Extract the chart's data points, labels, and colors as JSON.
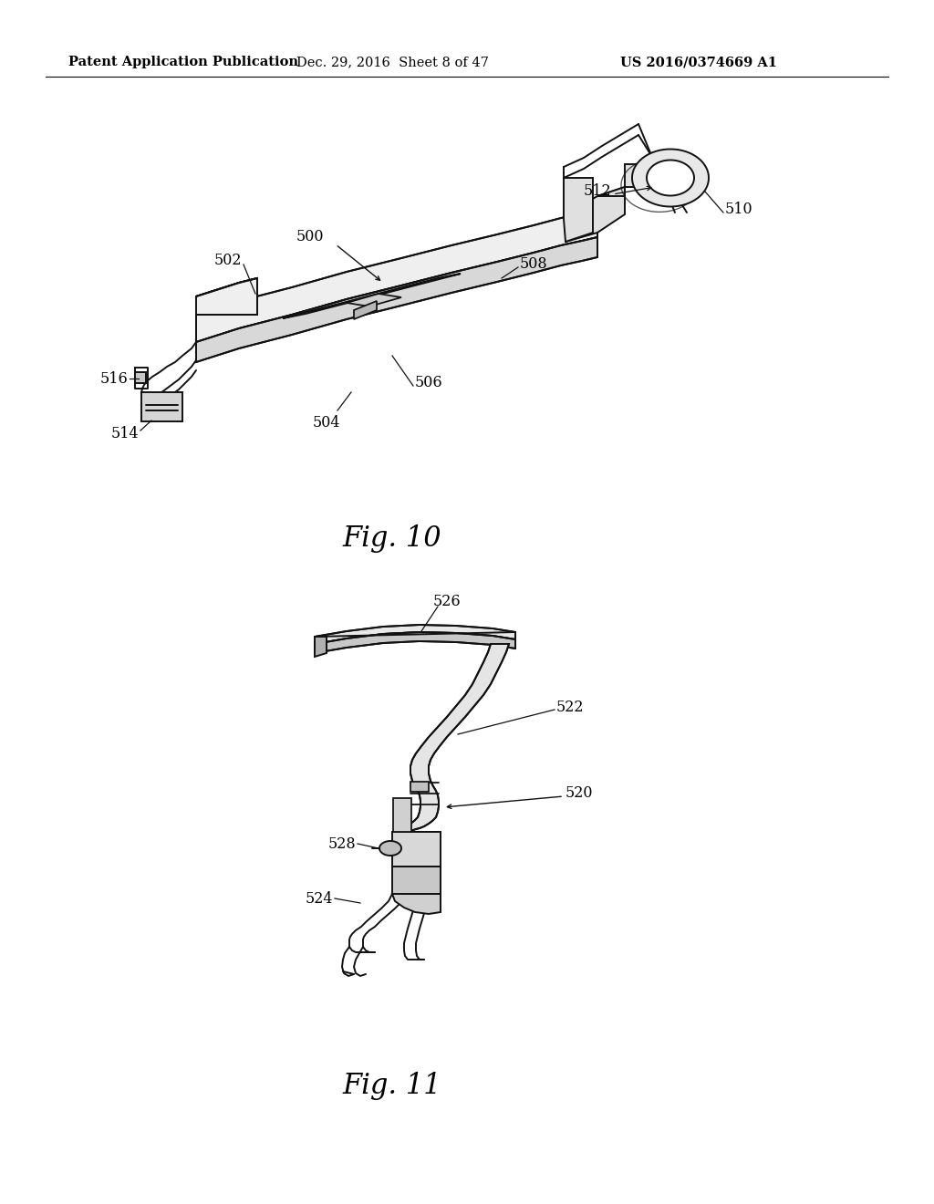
{
  "bg": "#ffffff",
  "lc": "#111111",
  "lw": 1.4,
  "header_left": "Patent Application Publication",
  "header_mid": "Dec. 29, 2016  Sheet 8 of 47",
  "header_right": "US 2016/0374669 A1",
  "fig10_caption": "Fig. 10",
  "fig11_caption": "Fig. 11",
  "label_fs": 11.5,
  "caption_fs": 22,
  "header_fs": 10.5
}
